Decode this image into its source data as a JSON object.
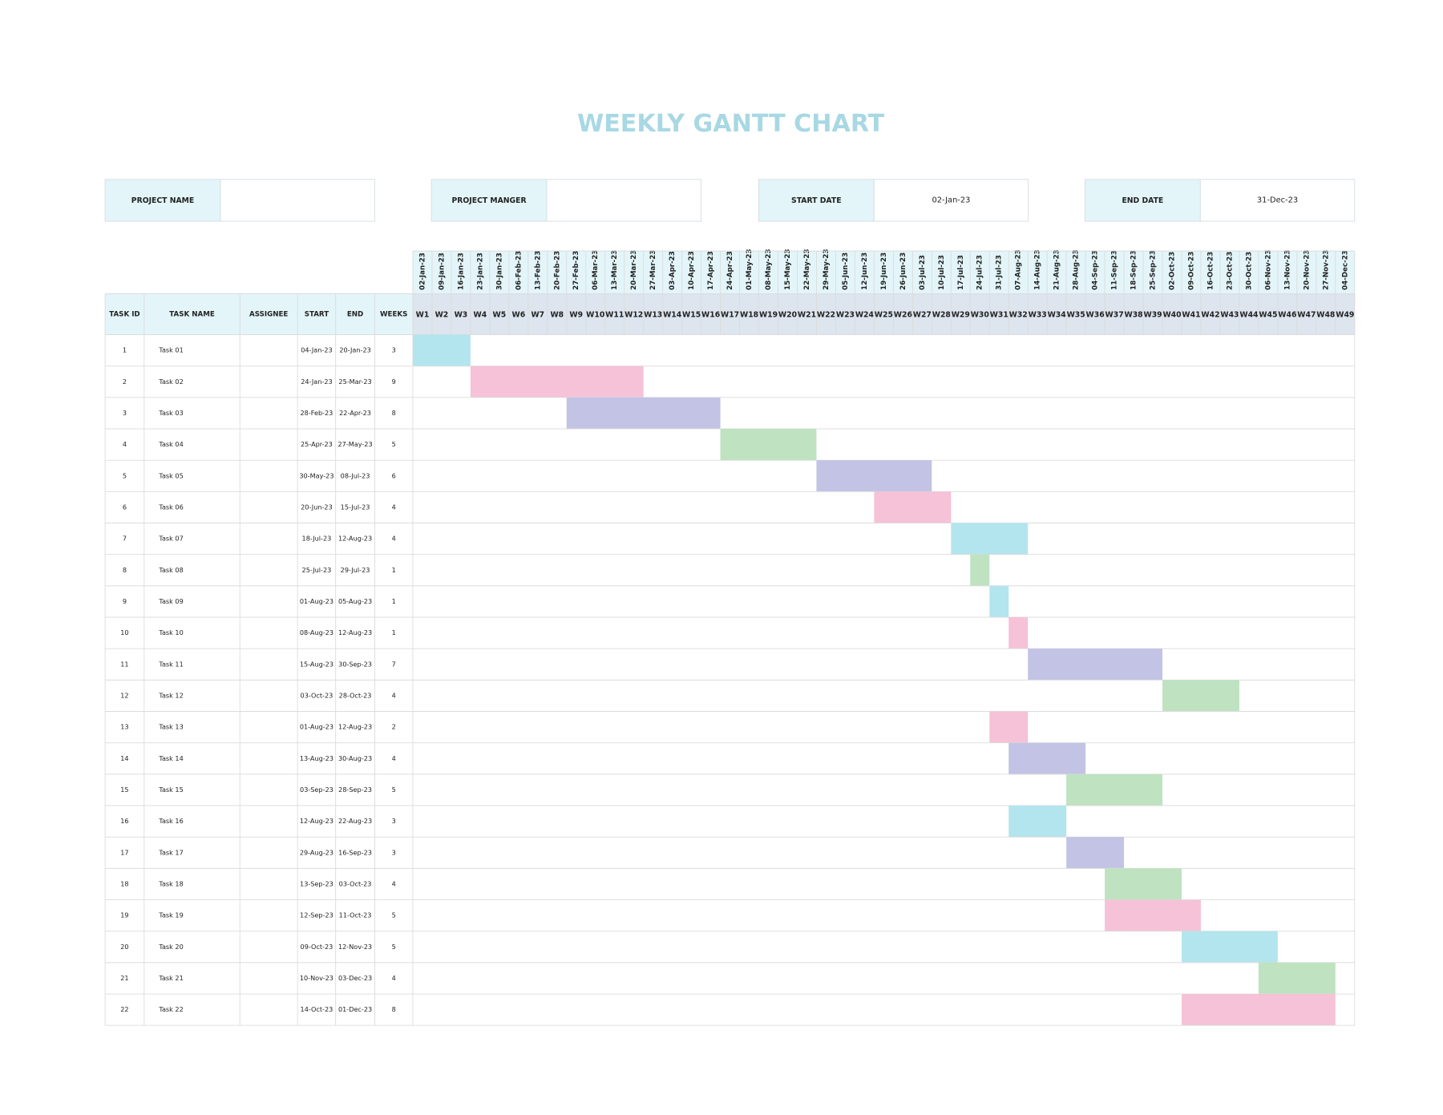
{
  "title": "WEEKLY GANTT CHART",
  "info": [
    {
      "label": "PROJECT NAME"
    },
    {
      "label": "PROJECT MANGER"
    },
    {
      "label": "START DATE",
      "value": "02-Jan-23"
    },
    {
      "label": "END DATE",
      "value": "31-Dec-23"
    }
  ],
  "columns": [
    "TASK ID",
    "TASK NAME",
    "ASSIGNEE",
    "START",
    "END",
    "WEEKS"
  ],
  "weeks": [
    {
      "label": "W1",
      "date": "02-Jan-23"
    },
    {
      "label": "W2",
      "date": "09-Jan-23"
    },
    {
      "label": "W3",
      "date": "16-Jan-23"
    },
    {
      "label": "W4",
      "date": "23-Jan-23"
    },
    {
      "label": "W5",
      "date": "30-Jan-23"
    },
    {
      "label": "W6",
      "date": "06-Feb-23"
    },
    {
      "label": "W7",
      "date": "13-Feb-23"
    },
    {
      "label": "W8",
      "date": "20-Feb-23"
    },
    {
      "label": "W9",
      "date": "27-Feb-23"
    },
    {
      "label": "W10",
      "date": "06-Mar-23"
    },
    {
      "label": "W11",
      "date": "13-Mar-23"
    },
    {
      "label": "W12",
      "date": "20-Mar-23"
    },
    {
      "label": "W13",
      "date": "27-Mar-23"
    },
    {
      "label": "W14",
      "date": "03-Apr-23"
    },
    {
      "label": "W15",
      "date": "10-Apr-23"
    },
    {
      "label": "W16",
      "date": "17-Apr-23"
    },
    {
      "label": "W17",
      "date": "24-Apr-23"
    },
    {
      "label": "W18",
      "date": "01-May-23"
    },
    {
      "label": "W19",
      "date": "08-May-23"
    },
    {
      "label": "W20",
      "date": "15-May-23"
    },
    {
      "label": "W21",
      "date": "22-May-23"
    },
    {
      "label": "W22",
      "date": "29-May-23"
    },
    {
      "label": "W23",
      "date": "05-Jun-23"
    },
    {
      "label": "W24",
      "date": "12-Jun-23"
    },
    {
      "label": "W25",
      "date": "19-Jun-23"
    },
    {
      "label": "W26",
      "date": "26-Jun-23"
    },
    {
      "label": "W27",
      "date": "03-Jul-23"
    },
    {
      "label": "W28",
      "date": "10-Jul-23"
    },
    {
      "label": "W29",
      "date": "17-Jul-23"
    },
    {
      "label": "W30",
      "date": "24-Jul-23"
    },
    {
      "label": "W31",
      "date": "31-Jul-23"
    },
    {
      "label": "W32",
      "date": "07-Aug-23"
    },
    {
      "label": "W33",
      "date": "14-Aug-23"
    },
    {
      "label": "W34",
      "date": "21-Aug-23"
    },
    {
      "label": "W35",
      "date": "28-Aug-23"
    },
    {
      "label": "W36",
      "date": "04-Sep-23"
    },
    {
      "label": "W37",
      "date": "11-Sep-23"
    },
    {
      "label": "W38",
      "date": "18-Sep-23"
    },
    {
      "label": "W39",
      "date": "25-Sep-23"
    },
    {
      "label": "W40",
      "date": "02-Oct-23"
    },
    {
      "label": "W41",
      "date": "09-Oct-23"
    },
    {
      "label": "W42",
      "date": "16-Oct-23"
    },
    {
      "label": "W43",
      "date": "23-Oct-23"
    },
    {
      "label": "W44",
      "date": "30-Oct-23"
    },
    {
      "label": "W45",
      "date": "06-Nov-23"
    },
    {
      "label": "W46",
      "date": "13-Nov-23"
    },
    {
      "label": "W47",
      "date": "20-Nov-23"
    },
    {
      "label": "W48",
      "date": "27-Nov-23"
    },
    {
      "label": "W49",
      "date": "04-Dec-23"
    }
  ],
  "tasks": [
    {
      "id": 1,
      "name": "Task 01",
      "start": "04-Jan-23",
      "end": "20-Jan-23",
      "weeks": 3,
      "color": "#b3e5ee"
    },
    {
      "id": 2,
      "name": "Task 02",
      "start": "24-Jan-23",
      "end": "25-Mar-23",
      "weeks": 9,
      "color": "#f5c2d7"
    },
    {
      "id": 3,
      "name": "Task 03",
      "start": "28-Feb-23",
      "end": "22-Apr-23",
      "weeks": 8,
      "color": "#c3c3e5"
    },
    {
      "id": 4,
      "name": "Task 04",
      "start": "25-Apr-23",
      "end": "27-May-23",
      "weeks": 5,
      "color": "#bfe2c0"
    },
    {
      "id": 5,
      "name": "Task 05",
      "start": "30-May-23",
      "end": "08-Jul-23",
      "weeks": 6,
      "color": "#c3c3e5"
    },
    {
      "id": 6,
      "name": "Task 06",
      "start": "20-Jun-23",
      "end": "15-Jul-23",
      "weeks": 4,
      "color": "#f5c2d7"
    },
    {
      "id": 7,
      "name": "Task 07",
      "start": "18-Jul-23",
      "end": "12-Aug-23",
      "weeks": 4,
      "color": "#b3e5ee"
    },
    {
      "id": 8,
      "name": "Task 08",
      "start": "25-Jul-23",
      "end": "29-Jul-23",
      "weeks": 1,
      "color": "#bfe2c0"
    },
    {
      "id": 9,
      "name": "Task 09",
      "start": "01-Aug-23",
      "end": "05-Aug-23",
      "weeks": 1,
      "color": "#b3e5ee"
    },
    {
      "id": 10,
      "name": "Task 10",
      "start": "08-Aug-23",
      "end": "12-Aug-23",
      "weeks": 1,
      "color": "#f5c2d7"
    },
    {
      "id": 11,
      "name": "Task 11",
      "start": "15-Aug-23",
      "end": "30-Sep-23",
      "weeks": 7,
      "color": "#c3c3e5"
    },
    {
      "id": 12,
      "name": "Task 12",
      "start": "03-Oct-23",
      "end": "28-Oct-23",
      "weeks": 4,
      "color": "#bfe2c0"
    },
    {
      "id": 13,
      "name": "Task 13",
      "start": "01-Aug-23",
      "end": "12-Aug-23",
      "weeks": 2,
      "color": "#f5c2d7"
    },
    {
      "id": 14,
      "name": "Task 14",
      "start": "13-Aug-23",
      "end": "30-Aug-23",
      "weeks": 4,
      "color": "#c3c3e5"
    },
    {
      "id": 15,
      "name": "Task 15",
      "start": "03-Sep-23",
      "end": "28-Sep-23",
      "weeks": 5,
      "color": "#bfe2c0"
    },
    {
      "id": 16,
      "name": "Task 16",
      "start": "12-Aug-23",
      "end": "22-Aug-23",
      "weeks": 3,
      "color": "#b3e5ee"
    },
    {
      "id": 17,
      "name": "Task 17",
      "start": "29-Aug-23",
      "end": "16-Sep-23",
      "weeks": 3,
      "color": "#c3c3e5"
    },
    {
      "id": 18,
      "name": "Task 18",
      "start": "13-Sep-23",
      "end": "03-Oct-23",
      "weeks": 4,
      "color": "#bfe2c0"
    },
    {
      "id": 19,
      "name": "Task 19",
      "start": "12-Sep-23",
      "end": "11-Oct-23",
      "weeks": 5,
      "color": "#f5c2d7"
    },
    {
      "id": 20,
      "name": "Task 20",
      "start": "09-Oct-23",
      "end": "12-Nov-23",
      "weeks": 5,
      "color": "#b3e5ee"
    },
    {
      "id": 21,
      "name": "Task 21",
      "start": "10-Nov-23",
      "end": "03-Dec-23",
      "weeks": 4,
      "color": "#bfe2c0"
    },
    {
      "id": 22,
      "name": "Task 22",
      "start": "14-Oct-23",
      "end": "01-Dec-23",
      "weeks": 8,
      "color": "#f5c2d7"
    }
  ]
}
